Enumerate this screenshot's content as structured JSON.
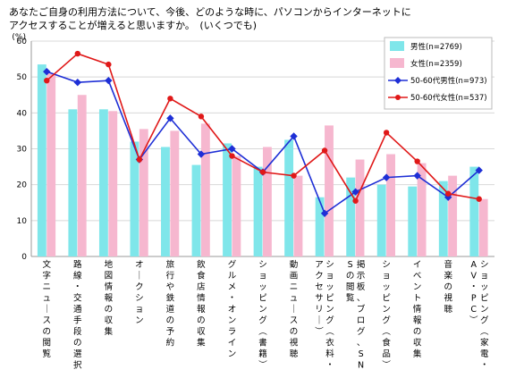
{
  "question_line1": "あなたご自身の利用方法について、今後、どのような時に、パソコンからインターネットに",
  "question_line2": "アクセスすることが増えると思いますか。　(いくつでも)",
  "chart_data": {
    "type": "bar",
    "title": "",
    "ylabel_unit": "(%)",
    "ylim": [
      0,
      60
    ],
    "yticks": [
      0,
      10,
      20,
      30,
      40,
      50,
      60
    ],
    "grid": true,
    "legend_position": "top-right",
    "categories": [
      "文字ニュースの閲覧",
      "路線・交通手段の選択",
      "地図情報の収集",
      "オークション",
      "旅行や鉄道の予約",
      "飲食店情報の収集",
      "グルメ・オンライン",
      "ショッピング(書籍)",
      "動画ニュースの視聴",
      "ショッピング(衣料・アクセサリー)",
      "掲示板、ブログ、SNSの閲覧",
      "ショッピング(食品)",
      "イベント情報の収集",
      "音楽の視聴",
      "ショッピング(家電・AV・PC)"
    ],
    "series": [
      {
        "name": "男性(n=2769)",
        "kind": "bar",
        "color": "#7fe6ea",
        "values": [
          53.5,
          41.0,
          41.0,
          32.0,
          30.5,
          25.5,
          31.5,
          25.0,
          32.5,
          16.5,
          22.0,
          20.0,
          19.5,
          21.0,
          25.0
        ]
      },
      {
        "name": "女性(n=2359)",
        "kind": "bar",
        "color": "#f6b7cf",
        "values": [
          51.0,
          45.0,
          40.5,
          35.5,
          35.0,
          37.0,
          28.0,
          30.5,
          22.5,
          36.5,
          27.0,
          28.5,
          26.0,
          22.5,
          16.0
        ]
      },
      {
        "name": "50-60代男性(n=973)",
        "kind": "line",
        "color": "#1e2fd6",
        "values": [
          51.5,
          48.5,
          49.0,
          27.0,
          38.5,
          28.5,
          30.0,
          23.5,
          33.5,
          12.0,
          18.0,
          22.0,
          22.5,
          16.5,
          24.0
        ]
      },
      {
        "name": "50-60代女性(n=537)",
        "kind": "line",
        "color": "#e01818",
        "values": [
          49.0,
          56.5,
          53.5,
          27.0,
          44.0,
          39.0,
          28.0,
          23.5,
          22.5,
          29.5,
          15.5,
          34.5,
          26.5,
          17.5,
          16.0
        ]
      }
    ]
  }
}
